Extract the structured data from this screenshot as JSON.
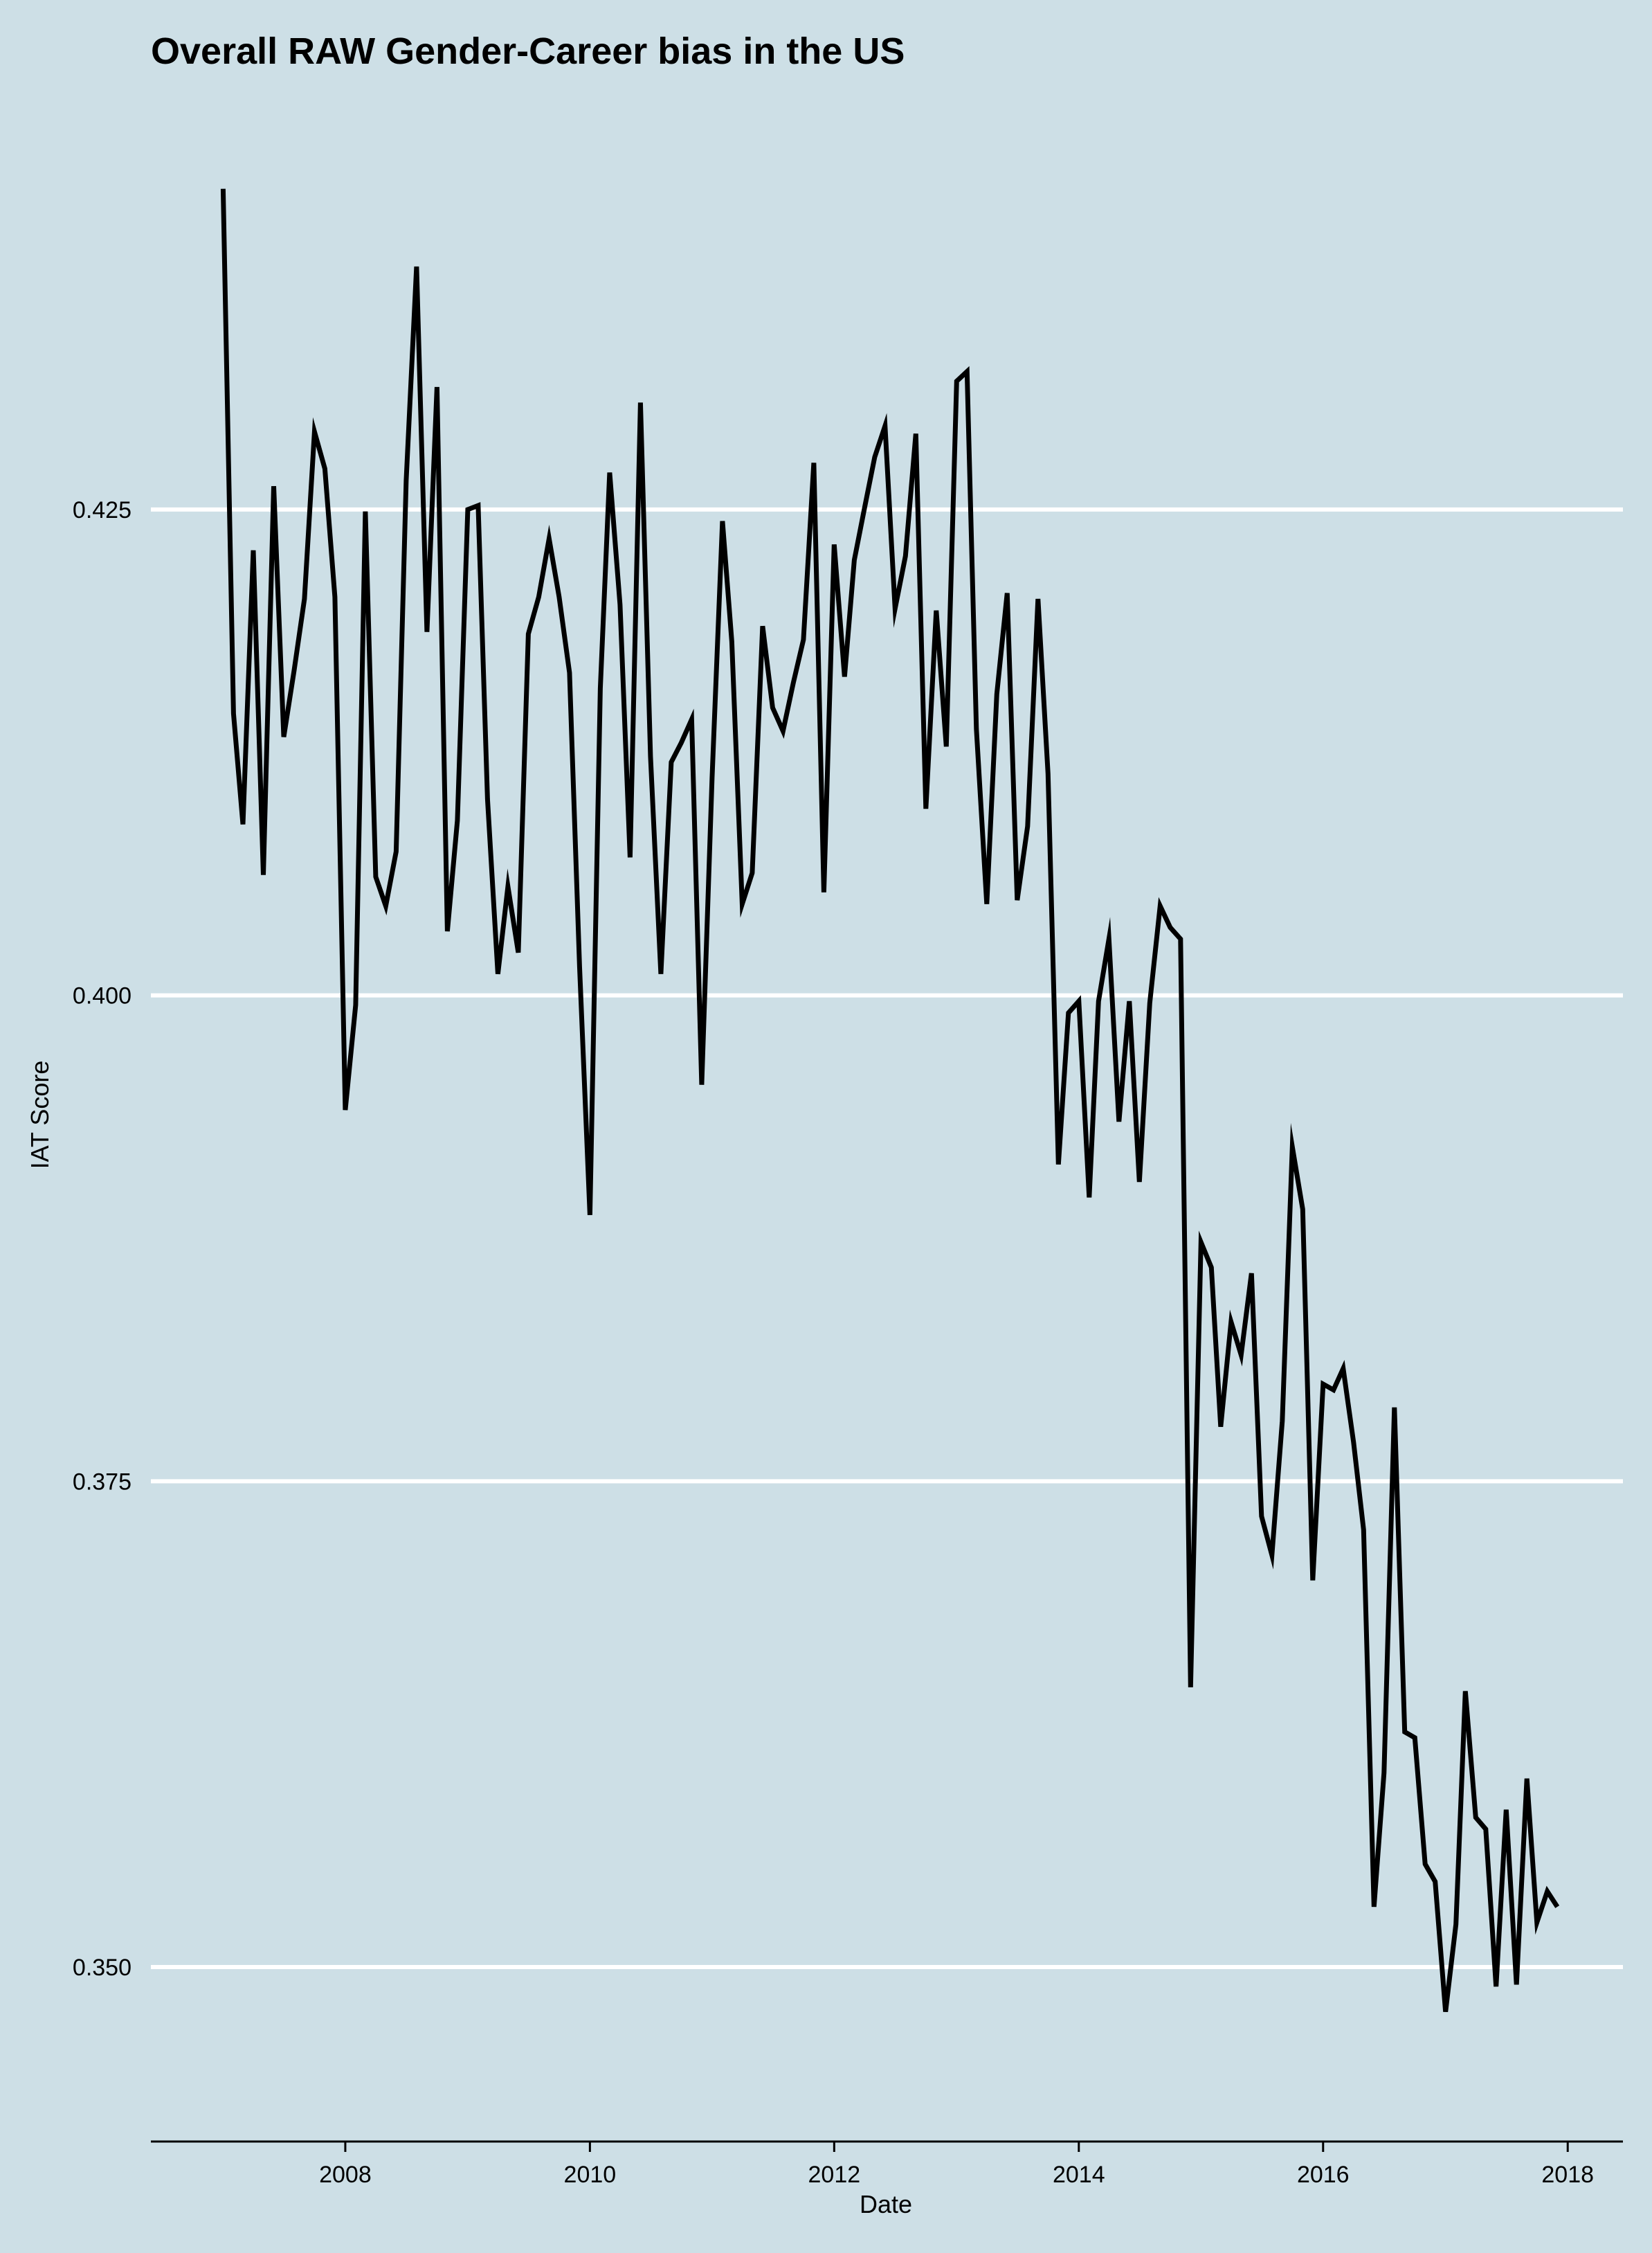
{
  "chart_data": {
    "type": "line",
    "title": "Overall RAW Gender-Career bias in the US",
    "xlabel": "Date",
    "ylabel": "IAT Score",
    "xlim": [
      "2006-05-30",
      "2018-06-15"
    ],
    "ylim": [
      0.3422,
      0.4432
    ],
    "y_ticks": [
      0.35,
      0.375,
      0.4,
      0.425
    ],
    "y_tick_labels": [
      "0.350",
      "0.375",
      "0.400",
      "0.425"
    ],
    "x_ticks": [
      "2008-01-01",
      "2010-01-01",
      "2012-01-01",
      "2014-01-01",
      "2016-01-01",
      "2018-01-01"
    ],
    "x_tick_labels": [
      "2008",
      "2010",
      "2012",
      "2014",
      "2016",
      "2018"
    ],
    "grid": "horizontal",
    "line_color": "#000000",
    "background": "#cddfe6",
    "series": [
      {
        "x": [
          "2007-01-01",
          "2007-02-01",
          "2007-03-01",
          "2007-04-01",
          "2007-05-01",
          "2007-06-01",
          "2007-07-01",
          "2007-08-01",
          "2007-09-01",
          "2007-10-01",
          "2007-11-01",
          "2007-12-01",
          "2008-01-01",
          "2008-02-01",
          "2008-03-01",
          "2008-04-01",
          "2008-05-01",
          "2008-06-01",
          "2008-07-01",
          "2008-08-01",
          "2008-09-01",
          "2008-10-01",
          "2008-11-01",
          "2008-12-01",
          "2009-01-01",
          "2009-02-01",
          "2009-03-01",
          "2009-04-01",
          "2009-05-01",
          "2009-06-01",
          "2009-07-01",
          "2009-08-01",
          "2009-09-01",
          "2009-10-01",
          "2009-11-01",
          "2009-12-01",
          "2010-01-01",
          "2010-02-01",
          "2010-03-01",
          "2010-04-01",
          "2010-05-01",
          "2010-06-01",
          "2010-07-01",
          "2010-08-01",
          "2010-09-01",
          "2010-10-01",
          "2010-11-01",
          "2010-12-01",
          "2011-01-01",
          "2011-02-01",
          "2011-03-01",
          "2011-04-01",
          "2011-05-01",
          "2011-06-01",
          "2011-07-01",
          "2011-08-01",
          "2011-09-01",
          "2011-10-01",
          "2011-11-01",
          "2011-12-01",
          "2012-01-01",
          "2012-02-01",
          "2012-03-01",
          "2012-04-01",
          "2012-05-01",
          "2012-06-01",
          "2012-07-01",
          "2012-08-01",
          "2012-09-01",
          "2012-10-01",
          "2012-11-01",
          "2012-12-01",
          "2013-01-01",
          "2013-02-01",
          "2013-03-01",
          "2013-04-01",
          "2013-05-01",
          "2013-06-01",
          "2013-07-01",
          "2013-08-01",
          "2013-09-01",
          "2013-10-01",
          "2013-11-01",
          "2013-12-01",
          "2014-01-01",
          "2014-02-01",
          "2014-03-01",
          "2014-04-01",
          "2014-05-01",
          "2014-06-01",
          "2014-07-01",
          "2014-08-01",
          "2014-09-01",
          "2014-10-01",
          "2014-11-01",
          "2014-12-01",
          "2015-01-01",
          "2015-02-01",
          "2015-03-01",
          "2015-04-01",
          "2015-05-01",
          "2015-06-01",
          "2015-07-01",
          "2015-08-01",
          "2015-09-01",
          "2015-10-01",
          "2015-11-01",
          "2015-12-01",
          "2016-01-01",
          "2016-02-01",
          "2016-03-01",
          "2016-04-01",
          "2016-05-01",
          "2016-06-01",
          "2016-07-01",
          "2016-08-01",
          "2016-09-01",
          "2016-10-01",
          "2016-11-01",
          "2016-12-01",
          "2017-01-01",
          "2017-02-01",
          "2017-03-01",
          "2017-04-01",
          "2017-05-01",
          "2017-06-01",
          "2017-07-01",
          "2017-08-01",
          "2017-09-01",
          "2017-10-01",
          "2017-11-01",
          "2017-12-01"
        ],
        "y": [
          0.4415,
          0.4145,
          0.4088,
          0.4229,
          0.4062,
          0.4262,
          0.4133,
          0.4167,
          0.4204,
          0.429,
          0.4271,
          0.4205,
          0.3941,
          0.3995,
          0.4249,
          0.4061,
          0.4046,
          0.4074,
          0.4265,
          0.4375,
          0.4187,
          0.4313,
          0.4033,
          0.409,
          0.425,
          0.4252,
          0.4101,
          0.4011,
          0.4056,
          0.4022,
          0.4186,
          0.4205,
          0.4235,
          0.4205,
          0.4166,
          0.4015,
          0.3887,
          0.4158,
          0.4269,
          0.4201,
          0.4071,
          0.4305,
          0.4123,
          0.4011,
          0.412,
          0.413,
          0.4142,
          0.3954,
          0.4112,
          0.4244,
          0.4182,
          0.4047,
          0.4063,
          0.419,
          0.4148,
          0.4136,
          0.4161,
          0.4183,
          0.4274,
          0.4053,
          0.4232,
          0.4164,
          0.4224,
          0.4251,
          0.4277,
          0.4293,
          0.4199,
          0.4226,
          0.4289,
          0.4096,
          0.4198,
          0.4128,
          0.4316,
          0.4321,
          0.4137,
          0.4047,
          0.4155,
          0.4207,
          0.4049,
          0.4087,
          0.4204,
          0.4114,
          0.3913,
          0.3991,
          0.3997,
          0.3896,
          0.3997,
          0.4029,
          0.3935,
          0.3997,
          0.3904,
          0.3996,
          0.4046,
          0.4035,
          0.4029,
          0.3644,
          0.3873,
          0.386,
          0.3778,
          0.3832,
          0.3815,
          0.3857,
          0.3732,
          0.3712,
          0.3781,
          0.3922,
          0.389,
          0.3699,
          0.38,
          0.3797,
          0.3808,
          0.377,
          0.3725,
          0.3531,
          0.36,
          0.3788,
          0.3621,
          0.3618,
          0.3553,
          0.3544,
          0.3477,
          0.3522,
          0.3642,
          0.3577,
          0.3571,
          0.349,
          0.3581,
          0.3491,
          0.3597,
          0.3523,
          0.3539,
          0.3531
        ]
      }
    ]
  }
}
